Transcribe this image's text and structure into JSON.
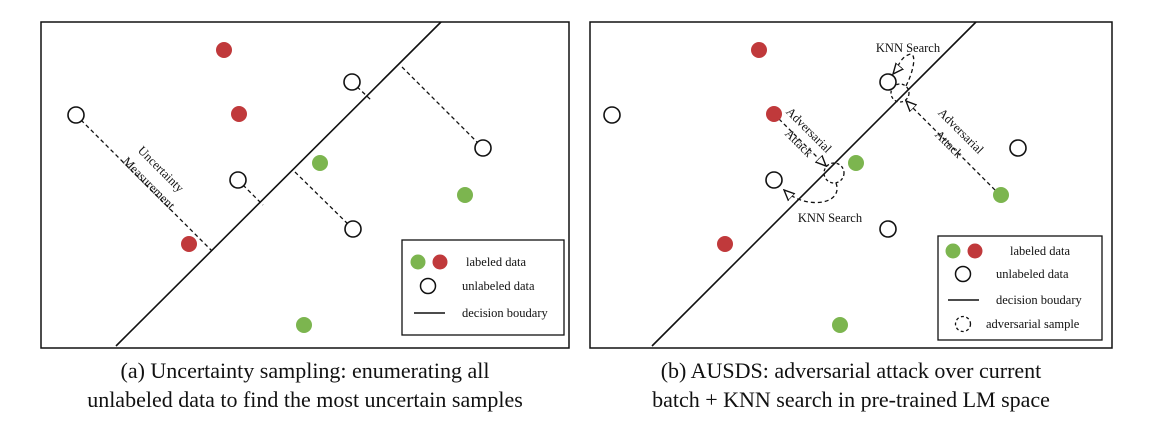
{
  "colors": {
    "labeled_red": "#c0393b",
    "labeled_green": "#7cb54f",
    "line": "#111111",
    "background": "#ffffff"
  },
  "panel_a": {
    "caption_line1": "(a) Uncertainty sampling: enumerating all",
    "caption_line2": "unlabeled data to find the most uncertain samples",
    "annotation_line1": "Uncertainty",
    "annotation_line2": "Measurement",
    "legend": {
      "labeled": "labeled data",
      "unlabeled": "unlabeled data",
      "boundary": "decision boudary"
    }
  },
  "panel_b": {
    "caption_line1": "(b) AUSDS: adversarial attack over current",
    "caption_line2": "batch + KNN search in pre-trained LM space",
    "knn_top": "KNN Search",
    "knn_bottom": "KNN Search",
    "adv_left_line1": "Adversarial",
    "adv_left_line2": "Attack",
    "adv_right_line1": "Adversarial",
    "adv_right_line2": "Attack",
    "legend": {
      "labeled": "labeled data",
      "unlabeled": "unlabeled data",
      "boundary": "decision boudary",
      "adversarial": "adversarial sample"
    }
  }
}
